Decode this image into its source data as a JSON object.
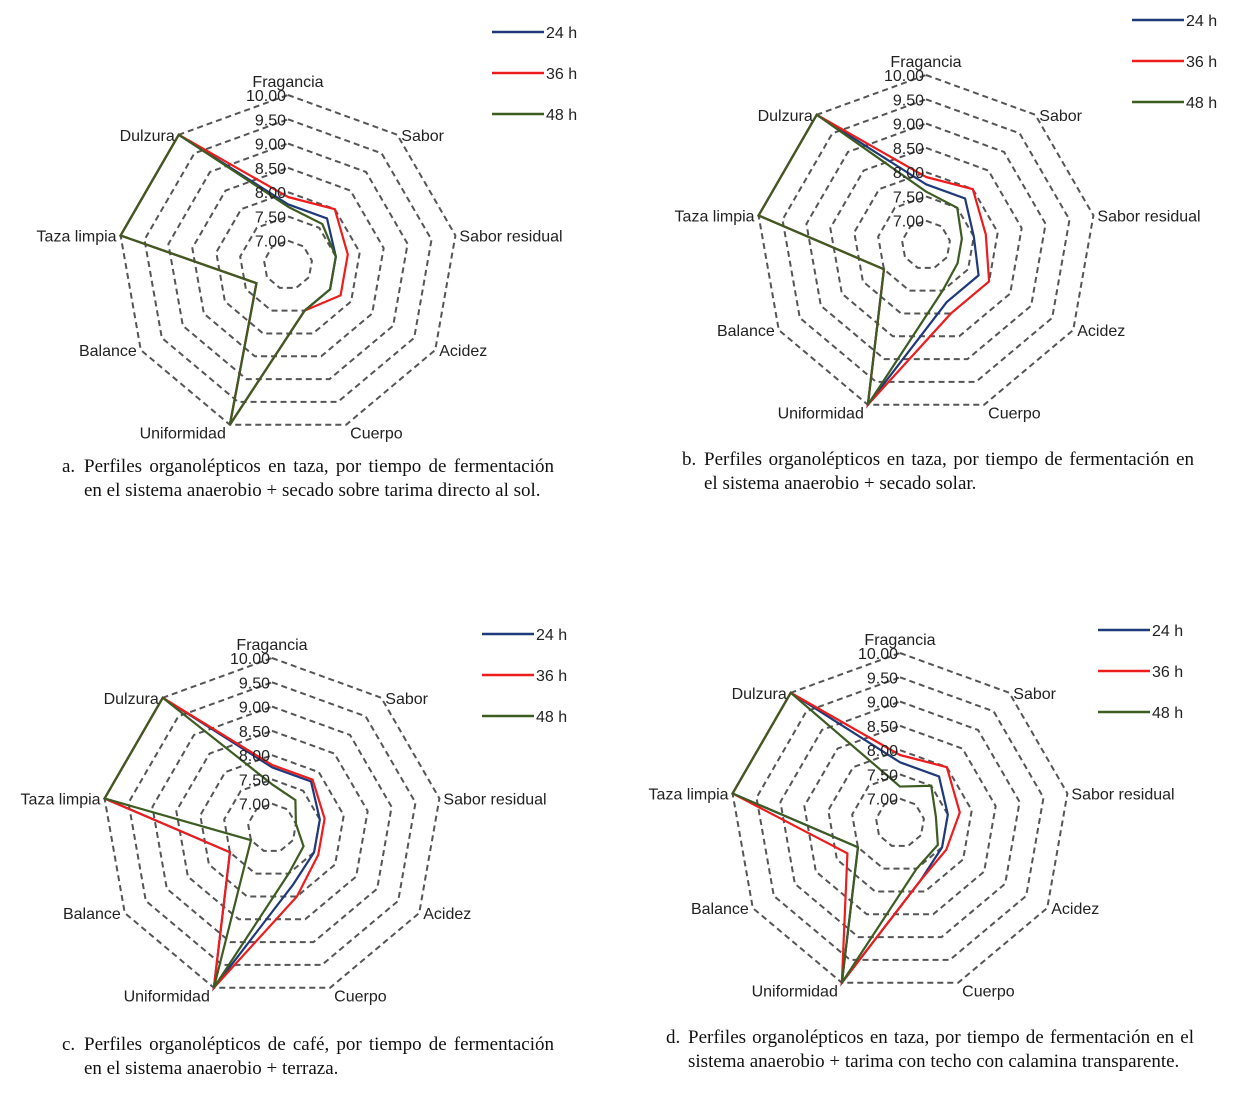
{
  "chart_data": [
    {
      "type": "radar",
      "axes": [
        "Fragancia",
        "Sabor",
        "Sabor residual",
        "Acidez",
        "Cuerpo",
        "Uniformidad",
        "Balance",
        "Taza limpia",
        "Dulzura"
      ],
      "ticks": [
        "7.00",
        "7.50",
        "8.00",
        "8.50",
        "9.00",
        "9.50",
        "10.00"
      ],
      "rmin": 6.5,
      "rmax": 10.0,
      "legend_position": "top-right",
      "series": [
        {
          "name": "24 h",
          "color": "#1f3a7a",
          "values": [
            7.75,
            7.75,
            7.5,
            7.5,
            7.5,
            10.0,
            7.25,
            10.0,
            10.0
          ]
        },
        {
          "name": "36 h",
          "color": "#ee1c1c",
          "values": [
            7.9,
            8.0,
            7.75,
            7.75,
            7.5,
            10.0,
            7.25,
            10.0,
            10.0
          ]
        },
        {
          "name": "48 h",
          "color": "#3d5c22",
          "values": [
            7.7,
            7.6,
            7.5,
            7.5,
            7.5,
            10.0,
            7.25,
            10.0,
            10.0
          ]
        }
      ],
      "caption_tag": "a.",
      "caption": "Perfiles organolépticos en taza, por tiempo de fermentación en el sistema anaerobio + secado sobre tarima directo al sol."
    },
    {
      "type": "radar",
      "axes": [
        "Fragancia",
        "Sabor",
        "Sabor residual",
        "Acidez",
        "Cuerpo",
        "Uniformidad",
        "Balance",
        "Taza limpia",
        "Dulzura"
      ],
      "ticks": [
        "7.00",
        "7.50",
        "8.00",
        "8.50",
        "9.00",
        "9.50",
        "10.00"
      ],
      "rmin": 6.5,
      "rmax": 10.0,
      "legend_position": "top-right",
      "series": [
        {
          "name": "24 h",
          "color": "#1f3a7a",
          "values": [
            7.75,
            7.75,
            7.5,
            7.75,
            7.75,
            10.0,
            7.5,
            10.0,
            10.0
          ]
        },
        {
          "name": "36 h",
          "color": "#ee1c1c",
          "values": [
            7.9,
            8.0,
            7.75,
            8.0,
            8.0,
            10.0,
            7.5,
            10.0,
            10.0
          ]
        },
        {
          "name": "48 h",
          "color": "#3d5c22",
          "values": [
            7.6,
            7.5,
            7.25,
            7.25,
            7.5,
            10.0,
            7.5,
            10.0,
            10.0
          ]
        }
      ],
      "caption_tag": "b.",
      "caption": "Perfiles organolépticos en taza, por tiempo de fermentación en el sistema anaerobio + secado solar."
    },
    {
      "type": "radar",
      "axes": [
        "Fragancia",
        "Sabor",
        "Sabor residual",
        "Acidez",
        "Cuerpo",
        "Uniformidad",
        "Balance",
        "Taza limpia",
        "Dulzura"
      ],
      "ticks": [
        "7.00",
        "7.50",
        "8.00",
        "8.50",
        "9.00",
        "9.50",
        "10.00"
      ],
      "rmin": 6.5,
      "rmax": 10.0,
      "legend_position": "top-right",
      "series": [
        {
          "name": "24 h",
          "color": "#1f3a7a",
          "values": [
            7.75,
            7.75,
            7.5,
            7.5,
            7.75,
            10.0,
            7.5,
            10.0,
            10.0
          ]
        },
        {
          "name": "36 h",
          "color": "#ee1c1c",
          "values": [
            7.8,
            7.8,
            7.6,
            7.6,
            8.0,
            10.0,
            7.5,
            10.0,
            10.0
          ]
        },
        {
          "name": "48 h",
          "color": "#3d5c22",
          "values": [
            7.4,
            7.25,
            7.0,
            7.25,
            7.5,
            10.0,
            7.0,
            10.0,
            10.0
          ]
        }
      ],
      "caption_tag": "c.",
      "caption": "Perfiles organolépticos de café, por tiempo de fermentación en el sistema anaerobio + terraza."
    },
    {
      "type": "radar",
      "axes": [
        "Fragancia",
        "Sabor",
        "Sabor residual",
        "Acidez",
        "Cuerpo",
        "Uniformidad",
        "Balance",
        "Taza limpia",
        "Dulzura"
      ],
      "ticks": [
        "7.00",
        "7.50",
        "8.00",
        "8.50",
        "9.00",
        "9.50",
        "10.00"
      ],
      "rmin": 6.5,
      "rmax": 10.0,
      "legend_position": "top-right",
      "series": [
        {
          "name": "24 h",
          "color": "#1f3a7a",
          "values": [
            7.75,
            7.75,
            7.5,
            7.5,
            7.75,
            10.0,
            7.5,
            10.0,
            10.0
          ]
        },
        {
          "name": "36 h",
          "color": "#ee1c1c",
          "values": [
            7.9,
            8.0,
            7.75,
            7.6,
            7.75,
            10.0,
            7.75,
            10.0,
            10.0
          ]
        },
        {
          "name": "48 h",
          "color": "#3d5c22",
          "values": [
            7.25,
            7.5,
            7.25,
            7.4,
            7.5,
            10.0,
            7.5,
            10.0,
            10.0
          ]
        }
      ],
      "caption_tag": "d.",
      "caption": "Perfiles organolépticos en taza, por tiempo de fermentación en el sistema anaerobio + tarima con techo con calamina transparente."
    }
  ]
}
